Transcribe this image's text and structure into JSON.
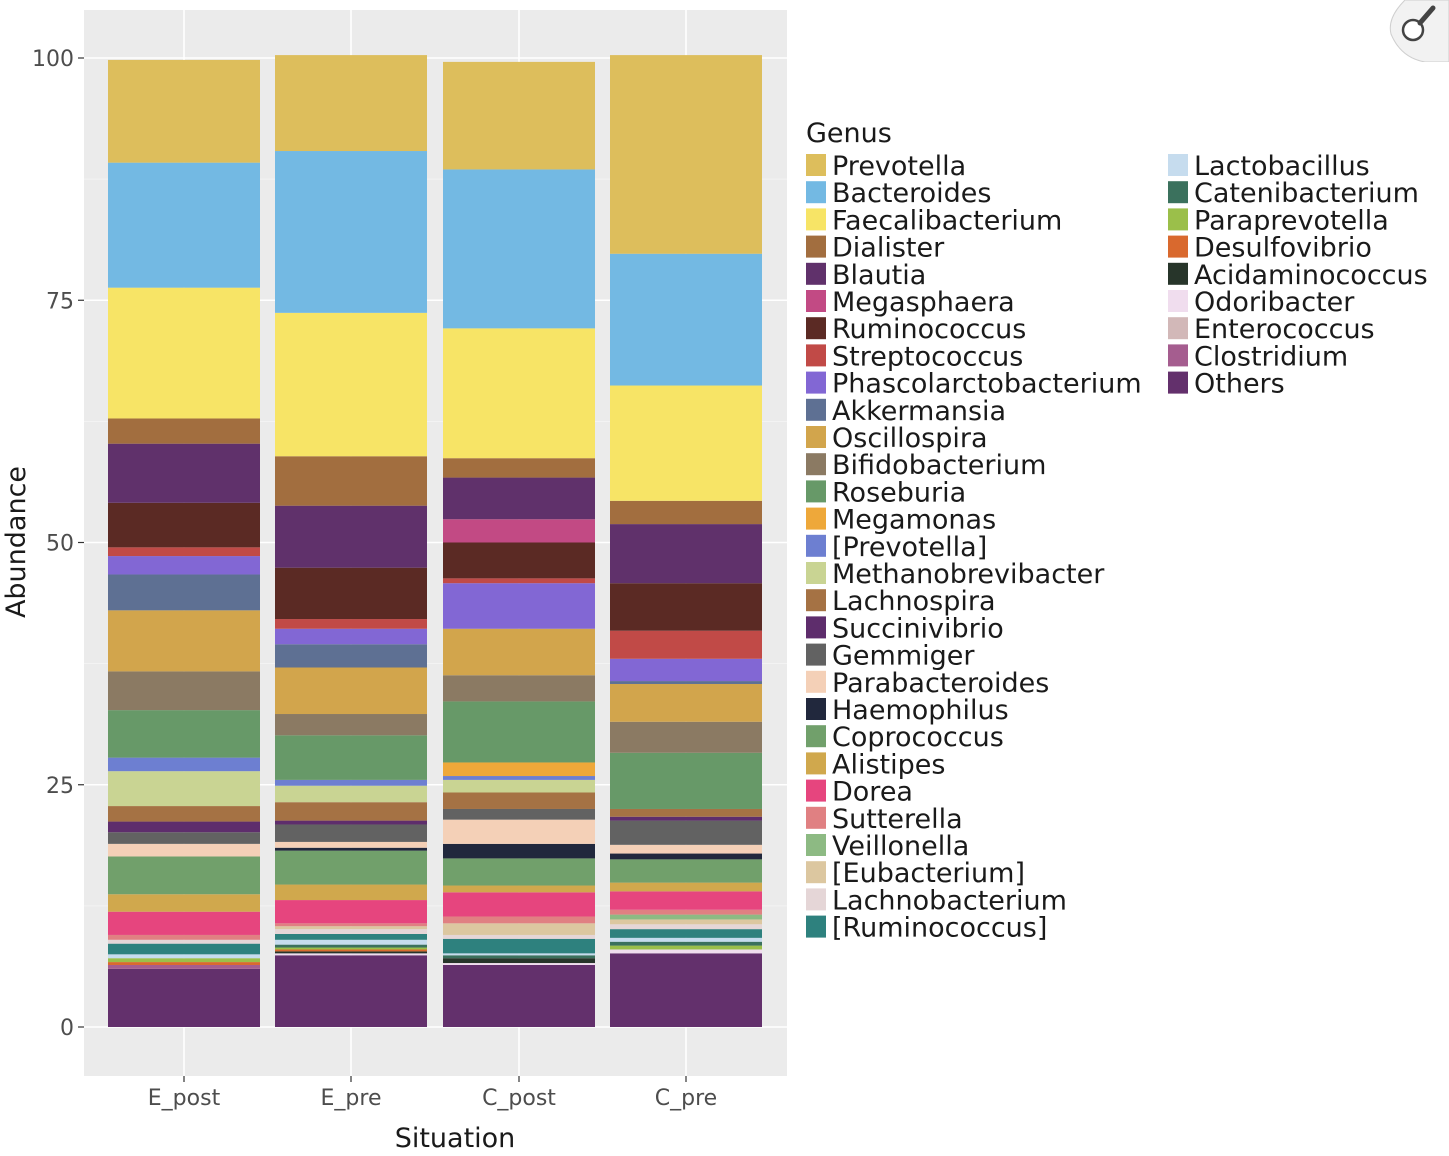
{
  "chart_data": {
    "type": "bar",
    "stacked": true,
    "xlabel": "Situation",
    "ylabel": "Abundance",
    "ylim": [
      0,
      100
    ],
    "yticks": [
      0,
      25,
      50,
      75,
      100
    ],
    "grid": true,
    "legend_title": "Genus",
    "legend_position": "right",
    "categories": [
      "E_post",
      "E_pre",
      "C_post",
      "C_pre"
    ],
    "series": [
      {
        "name": "Prevotella",
        "color": "#DDBE5C",
        "values": [
          10.6,
          9.9,
          11.1,
          20.5
        ]
      },
      {
        "name": "Bacteroides",
        "color": "#73B9E3",
        "values": [
          12.9,
          16.7,
          16.4,
          13.6
        ]
      },
      {
        "name": "Faecalibacterium",
        "color": "#F7E466",
        "values": [
          13.5,
          14.8,
          13.4,
          11.9
        ]
      },
      {
        "name": "Dialister",
        "color": "#A26E3F",
        "values": [
          2.6,
          5.1,
          2.0,
          2.4
        ]
      },
      {
        "name": "Blautia",
        "color": "#60316B",
        "values": [
          6.1,
          6.4,
          4.3,
          6.1
        ]
      },
      {
        "name": "Megasphaera",
        "color": "#C24A84",
        "values": [
          0,
          0,
          2.4,
          0
        ]
      },
      {
        "name": "Ruminococcus",
        "color": "#5B2A24",
        "values": [
          4.6,
          5.3,
          3.7,
          4.9
        ]
      },
      {
        "name": "Streptococcus",
        "color": "#C14A47",
        "values": [
          0.9,
          1.0,
          0.5,
          2.9
        ]
      },
      {
        "name": "Phascolarctobacterium",
        "color": "#8267D4",
        "values": [
          1.9,
          1.6,
          4.7,
          2.3
        ]
      },
      {
        "name": "Akkermansia",
        "color": "#5E7093",
        "values": [
          3.7,
          2.4,
          0,
          0.3
        ]
      },
      {
        "name": "Oscillospira",
        "color": "#D2A54C",
        "values": [
          6.3,
          4.8,
          4.8,
          3.9
        ]
      },
      {
        "name": "Bifidobacterium",
        "color": "#8B7A63",
        "values": [
          4.0,
          2.2,
          2.7,
          3.2
        ]
      },
      {
        "name": "Roseburia",
        "color": "#679968",
        "values": [
          4.9,
          4.6,
          6.3,
          5.8
        ]
      },
      {
        "name": "Megamonas",
        "color": "#EEA83A",
        "values": [
          0,
          0,
          1.4,
          0
        ]
      },
      {
        "name": "[Prevotella]",
        "color": "#6D7FD1",
        "values": [
          1.4,
          0.6,
          0.4,
          0
        ]
      },
      {
        "name": "Methanobrevibacter",
        "color": "#C9D493",
        "values": [
          3.6,
          1.7,
          1.3,
          0
        ]
      },
      {
        "name": "Lachnospira",
        "color": "#A57244",
        "values": [
          1.6,
          1.9,
          1.7,
          0.8
        ]
      },
      {
        "name": "Succinivibrio",
        "color": "#5E2D6C",
        "values": [
          1.1,
          0.4,
          0,
          0.4
        ]
      },
      {
        "name": "Gemmiger",
        "color": "#626262",
        "values": [
          1.2,
          1.8,
          1.1,
          2.5
        ]
      },
      {
        "name": "Parabacteroides",
        "color": "#F4D0B7",
        "values": [
          1.3,
          0.6,
          2.5,
          0.9
        ]
      },
      {
        "name": "Haemophilus",
        "color": "#21283D",
        "values": [
          0,
          0.3,
          1.5,
          0.6
        ]
      },
      {
        "name": "Coprococcus",
        "color": "#71A06B",
        "values": [
          3.9,
          3.5,
          2.8,
          2.4
        ]
      },
      {
        "name": "Alistipes",
        "color": "#D0A84D",
        "values": [
          1.8,
          1.6,
          0.7,
          0.9
        ]
      },
      {
        "name": "Dorea",
        "color": "#E6457E",
        "values": [
          2.4,
          2.4,
          2.5,
          1.9
        ]
      },
      {
        "name": "Sutterella",
        "color": "#E08082",
        "values": [
          0.5,
          0.3,
          0.7,
          0.5
        ]
      },
      {
        "name": "Veillonella",
        "color": "#8DBA83",
        "values": [
          0,
          0,
          0,
          0.5
        ]
      },
      {
        "name": "[Eubacterium]",
        "color": "#DCC7A0",
        "values": [
          0,
          0.3,
          1.2,
          0.5
        ]
      },
      {
        "name": "Lachnobacterium",
        "color": "#E5D6D7",
        "values": [
          0.4,
          0.5,
          0.4,
          0.5
        ]
      },
      {
        "name": "[Ruminococcus]",
        "color": "#2E817E",
        "values": [
          1.1,
          0.6,
          1.5,
          0.9
        ]
      },
      {
        "name": "Lactobacillus",
        "color": "#C6DCEE",
        "values": [
          0.4,
          0.5,
          0.2,
          0.4
        ]
      },
      {
        "name": "Catenibacterium",
        "color": "#3B715D",
        "values": [
          0,
          0.3,
          0.3,
          0.4
        ]
      },
      {
        "name": "Paraprevotella",
        "color": "#9BBF4A",
        "values": [
          0.4,
          0.2,
          0,
          0.4
        ]
      },
      {
        "name": "Desulfovibrio",
        "color": "#D9692E",
        "values": [
          0.3,
          0.2,
          0,
          0
        ]
      },
      {
        "name": "Acidaminococcus",
        "color": "#27352A",
        "values": [
          0,
          0.2,
          0.5,
          0
        ]
      },
      {
        "name": "Odoribacter",
        "color": "#F0DDEE",
        "values": [
          0,
          0.2,
          0.2,
          0.4
        ]
      },
      {
        "name": "Enterococcus",
        "color": "#D2B8B8",
        "values": [
          0,
          0,
          0,
          0
        ]
      },
      {
        "name": "Clostridium",
        "color": "#A55D8F",
        "values": [
          0.4,
          0,
          0,
          0
        ]
      },
      {
        "name": "Others",
        "color": "#63306C",
        "values": [
          6.0,
          7.4,
          6.4,
          7.6
        ]
      }
    ]
  }
}
